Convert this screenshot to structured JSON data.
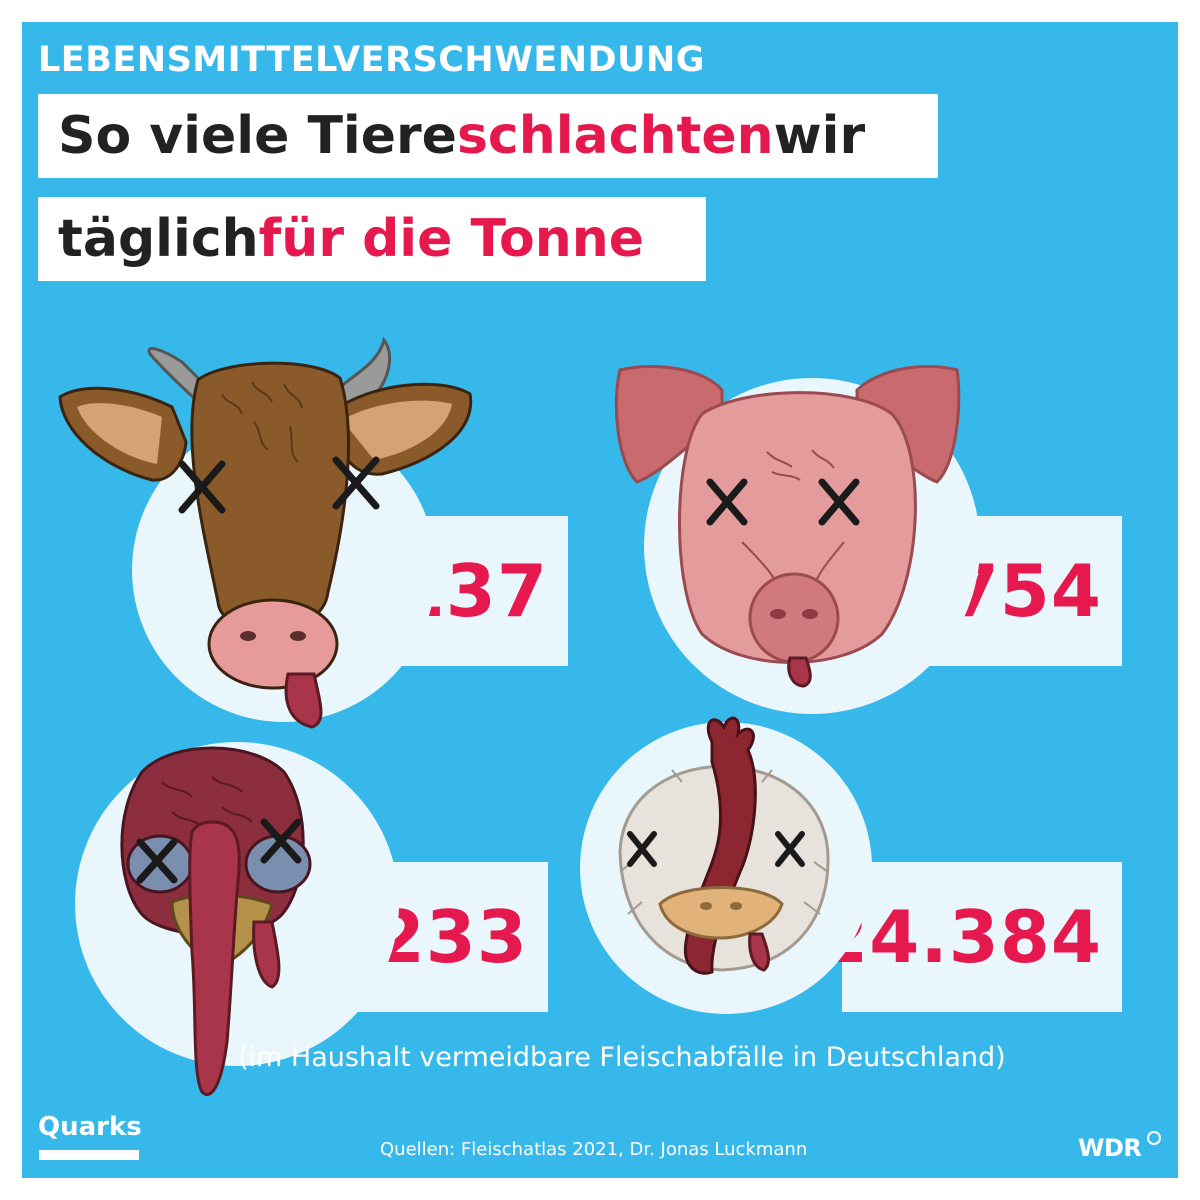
{
  "kicker": "LEBENSMITTELVERSCHWENDUNG",
  "headline": {
    "line1_a": "So viele Tiere ",
    "line1_b": "schlachten",
    "line1_c": " wir",
    "line2_a": "täglich ",
    "line2_b": "für die Tonne"
  },
  "counts": {
    "cow": "137",
    "pig": "1.754",
    "turkey": "1.233",
    "chicken": "24.384"
  },
  "footnote": "(im Haushalt vermeidbare Fleischabfälle in Deutschland)",
  "sources": "Quellen: Fleischatlas 2021, Dr. Jonas Luckmann",
  "branding": {
    "left_logo": "Quarks",
    "right_logo": "WDR"
  },
  "colors": {
    "background": "#37b8ea",
    "accent": "#e5194d",
    "text_dark": "#222222",
    "panel": "#e9f7fc"
  },
  "icons": [
    "cow-icon",
    "pig-icon",
    "turkey-icon",
    "chicken-icon"
  ]
}
